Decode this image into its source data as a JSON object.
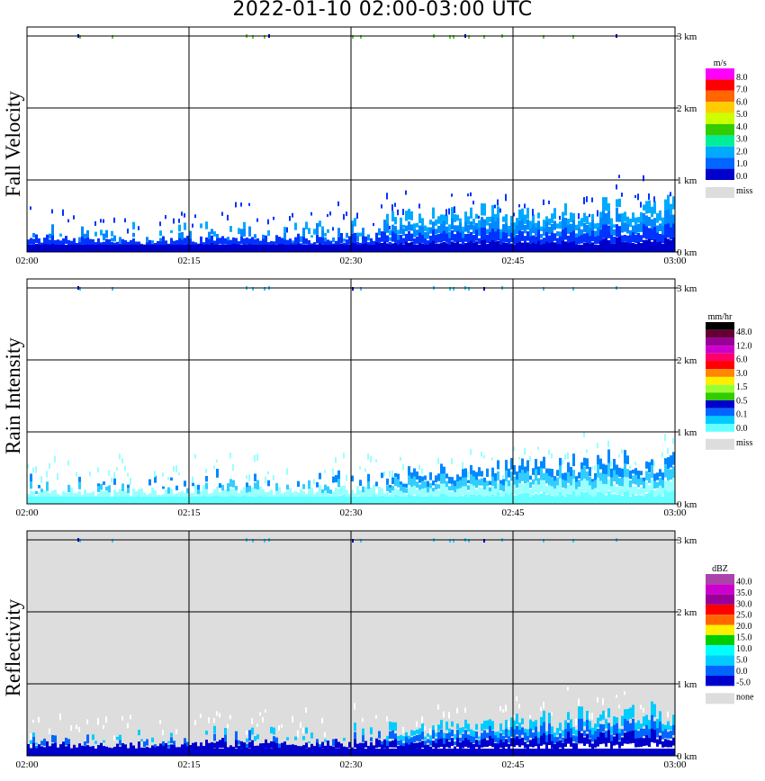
{
  "title": "2022-01-10   02:00-03:00 UTC",
  "chart_data": [
    {
      "type": "heatmap",
      "panel": "fall_velocity",
      "ylabel": "Fall Velocity",
      "x_ticks": [
        "02:00",
        "02:15",
        "02:30",
        "02:45",
        "03:00"
      ],
      "y_ticks": [
        "3 km",
        "2 km",
        "1 km",
        "0 km"
      ],
      "ylim": [
        0,
        3
      ],
      "legend_unit": "m/s",
      "legend_labels": [
        "8.0",
        "7.0",
        "6.0",
        "5.0",
        "4.0",
        "3.0",
        "2.0",
        "1.0",
        "0.0"
      ],
      "legend_colors": [
        "#ff00ff",
        "#ff0000",
        "#ff6600",
        "#ffcc00",
        "#ccff00",
        "#33cc00",
        "#00ee99",
        "#00aaff",
        "#0066ff",
        "#0000cc"
      ],
      "missing_label": "miss",
      "background": "#ffffff",
      "echo_top_km": [
        0.45,
        0.4,
        0.35,
        0.45,
        0.4,
        0.45,
        0.55,
        0.6,
        0.55,
        0.75,
        0.7
      ],
      "echo_colors": [
        "#0000cc",
        "#0033ff",
        "#0088ff",
        "#00aaff"
      ]
    },
    {
      "type": "heatmap",
      "panel": "rain_intensity",
      "ylabel": "Rain Intensity",
      "x_ticks": [
        "02:00",
        "02:15",
        "02:30",
        "02:45",
        "03:00"
      ],
      "y_ticks": [
        "3 km",
        "2 km",
        "1 km",
        "0 km"
      ],
      "ylim": [
        0,
        3
      ],
      "legend_unit": "mm/hr",
      "legend_labels": [
        "48.0",
        "12.0",
        "6.0",
        "3.0",
        "1.5",
        "0.5",
        "0.1",
        "0.0"
      ],
      "legend_colors": [
        "#000000",
        "#660033",
        "#990099",
        "#cc00cc",
        "#ff0066",
        "#ff0000",
        "#ff8800",
        "#ffee00",
        "#99ff33",
        "#33cc00",
        "#0000cc",
        "#0066ff",
        "#00ccff",
        "#66ffff"
      ],
      "missing_label": "miss",
      "background": "#ffffff",
      "echo_top_km": [
        0.4,
        0.35,
        0.4,
        0.45,
        0.4,
        0.45,
        0.5,
        0.55,
        0.6,
        0.7,
        0.7
      ],
      "echo_colors": [
        "#66ffff",
        "#99ffff",
        "#33ccff",
        "#0088ff"
      ]
    },
    {
      "type": "heatmap",
      "panel": "reflectivity",
      "ylabel": "Reflectivity",
      "x_ticks": [
        "02:00",
        "02:15",
        "02:30",
        "02:45",
        "03:00"
      ],
      "y_ticks": [
        "3 km",
        "2 km",
        "1 km",
        "0 km"
      ],
      "ylim": [
        0,
        3
      ],
      "legend_unit": "dBZ",
      "legend_labels": [
        "40.0",
        "35.0",
        "30.0",
        "25.0",
        "20.0",
        "15.0",
        "10.0",
        "5.0",
        "0.0",
        "-5.0"
      ],
      "legend_colors": [
        "#aa44aa",
        "#cc00cc",
        "#990099",
        "#ff0000",
        "#ff6600",
        "#ffee00",
        "#00cc00",
        "#00ffff",
        "#00ccff",
        "#0066ff",
        "#0000cc"
      ],
      "missing_label": "none",
      "background": "#dddddd",
      "echo_top_km": [
        0.35,
        0.3,
        0.35,
        0.4,
        0.35,
        0.4,
        0.45,
        0.5,
        0.55,
        0.65,
        0.7
      ],
      "echo_colors": [
        "#ffffff",
        "#0000cc",
        "#0066ff",
        "#00ccff"
      ]
    }
  ]
}
